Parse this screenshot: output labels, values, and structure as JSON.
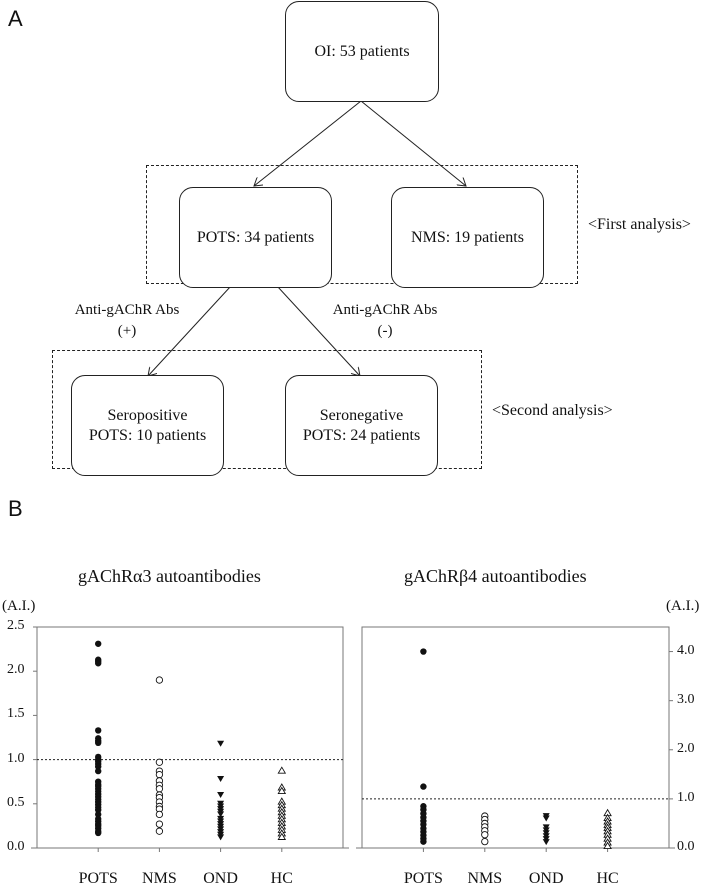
{
  "panels": {
    "a": "A",
    "b": "B"
  },
  "flowchart": {
    "root": "OI: 53 patients",
    "pots": "POTS: 34 patients",
    "nms": "NMS: 19 patients",
    "first_analysis": "<First analysis>",
    "pos_label_1": "Anti-gAChR Abs",
    "pos_label_2": "(+)",
    "neg_label_1": "Anti-gAChR Abs",
    "neg_label_2": "(-)",
    "sero_pos_1": "Seropositive",
    "sero_pos_2": "POTS: 10 patients",
    "sero_neg_1": "Seronegative",
    "sero_neg_2": "POTS: 24 patients",
    "second_analysis": "<Second analysis>"
  },
  "chart_data": [
    {
      "type": "scatter",
      "title": "gAChRα3 autoantibodies",
      "ylabel": "(A.I.)",
      "ylim": [
        0,
        2.5
      ],
      "yticks": [
        "0.0",
        "0.5",
        "1.0",
        "1.5",
        "2.0",
        "2.5"
      ],
      "categories": [
        "POTS",
        "NMS",
        "OND",
        "HC"
      ],
      "cutoff": 1.0,
      "series": [
        {
          "name": "POTS",
          "marker": "filled-circle",
          "values": [
            2.31,
            2.13,
            2.11,
            2.09,
            1.33,
            1.24,
            1.21,
            1.19,
            1.03,
            1.0,
            0.98,
            0.95,
            0.92,
            0.87,
            0.75,
            0.72,
            0.7,
            0.67,
            0.64,
            0.61,
            0.58,
            0.55,
            0.52,
            0.49,
            0.46,
            0.43,
            0.38,
            0.33,
            0.3,
            0.27,
            0.25,
            0.22,
            0.19,
            0.17
          ]
        },
        {
          "name": "NMS",
          "marker": "open-circle",
          "values": [
            1.9,
            0.97,
            0.87,
            0.83,
            0.76,
            0.71,
            0.67,
            0.6,
            0.57,
            0.52,
            0.47,
            0.44,
            0.38,
            0.27,
            0.19
          ]
        },
        {
          "name": "OND",
          "marker": "filled-triangle-down",
          "values": [
            1.18,
            0.78,
            0.6,
            0.5,
            0.47,
            0.44,
            0.41,
            0.38,
            0.33,
            0.3,
            0.27,
            0.24,
            0.21,
            0.18,
            0.15,
            0.12
          ]
        },
        {
          "name": "HC",
          "marker": "open-triangle-up",
          "values": [
            0.88,
            0.69,
            0.65,
            0.53,
            0.49,
            0.45,
            0.41,
            0.37,
            0.33,
            0.29,
            0.25,
            0.21,
            0.17,
            0.13
          ]
        }
      ]
    },
    {
      "type": "scatter",
      "title": "gAChRβ4 autoantibodies",
      "ylabel": "(A.I.)",
      "ylim": [
        0,
        4.5
      ],
      "yticks": [
        "0.0",
        "1.0",
        "2.0",
        "3.0",
        "4.0"
      ],
      "categories": [
        "POTS",
        "NMS",
        "OND",
        "HC"
      ],
      "cutoff": 1.0,
      "series": [
        {
          "name": "POTS",
          "marker": "filled-circle",
          "values": [
            4.0,
            1.25,
            0.85,
            0.78,
            0.7,
            0.62,
            0.55,
            0.48,
            0.4,
            0.33,
            0.26,
            0.19,
            0.13
          ]
        },
        {
          "name": "NMS",
          "marker": "open-circle",
          "values": [
            0.65,
            0.58,
            0.5,
            0.43,
            0.35,
            0.27,
            0.13
          ]
        },
        {
          "name": "OND",
          "marker": "filled-triangle-down",
          "values": [
            0.65,
            0.6,
            0.42,
            0.36,
            0.3,
            0.24,
            0.18,
            0.12
          ]
        },
        {
          "name": "HC",
          "marker": "open-triangle-up",
          "values": [
            0.72,
            0.62,
            0.55,
            0.48,
            0.42,
            0.35,
            0.28,
            0.2,
            0.12,
            0.05
          ]
        }
      ]
    }
  ]
}
